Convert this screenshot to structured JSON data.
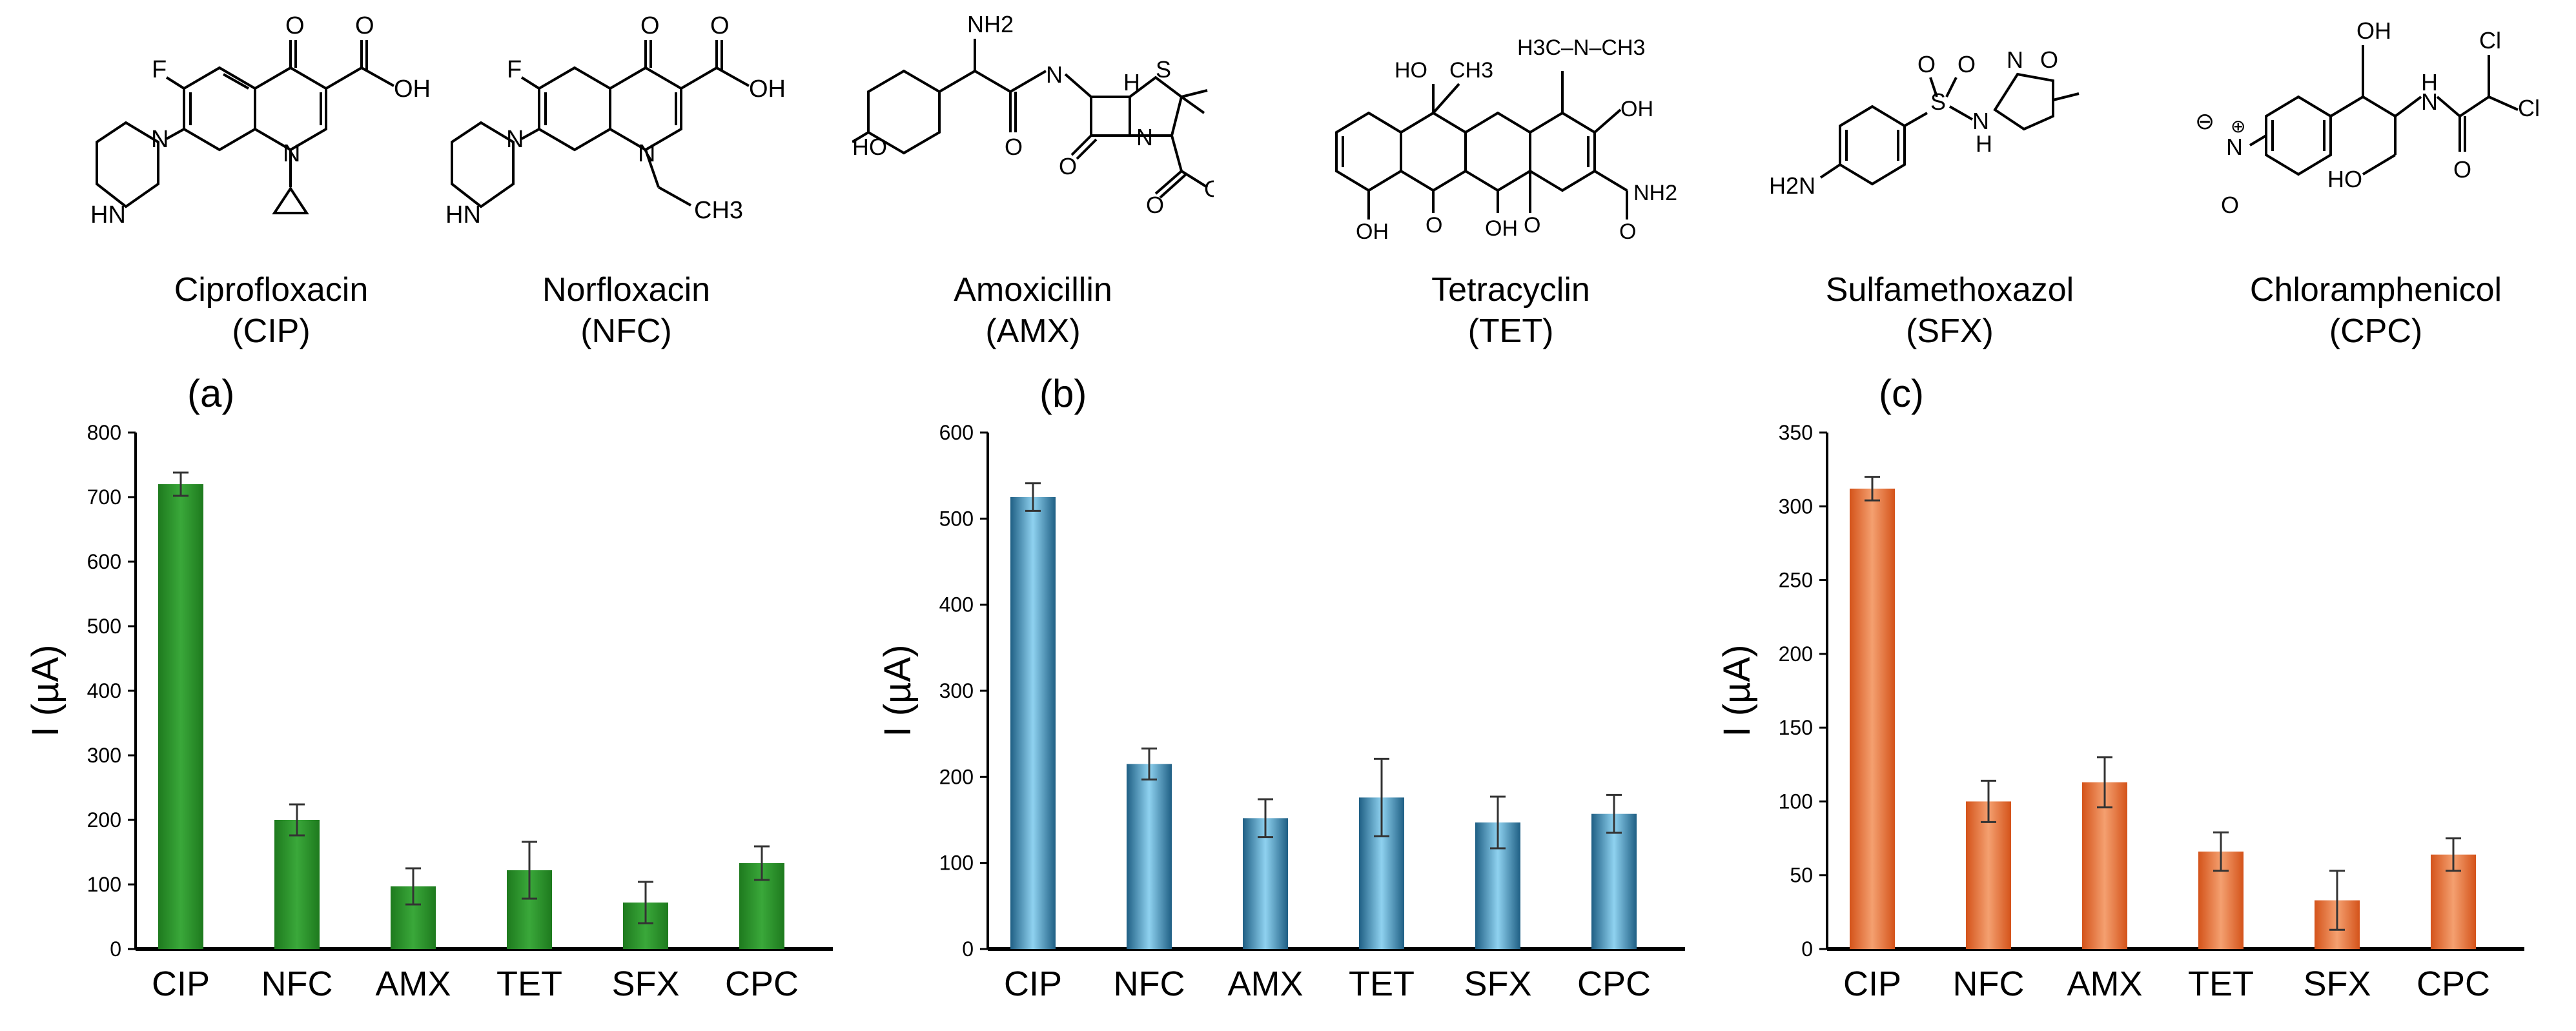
{
  "compounds": [
    {
      "name": "Ciprofloxacin",
      "abbr": "(CIP)",
      "structure_icon": "ciprofloxacin-structure"
    },
    {
      "name": "Norfloxacin",
      "abbr": "(NFC)",
      "structure_icon": "norfloxacin-structure"
    },
    {
      "name": "Amoxicillin",
      "abbr": "(AMX)",
      "structure_icon": "amoxicillin-structure"
    },
    {
      "name": "Tetracyclin",
      "abbr": "(TET)",
      "structure_icon": "tetracyclin-structure"
    },
    {
      "name": "Sulfamethoxazol",
      "abbr": "(SFX)",
      "structure_icon": "sulfamethoxazol-structure"
    },
    {
      "name": "Chloramphenicol",
      "abbr": "(CPC)",
      "structure_icon": "chloramphenicol-structure"
    }
  ],
  "structure_labels": {
    "cip": {
      "o": "O",
      "f": "F",
      "oh": "OH",
      "hn": "HN",
      "n": "N"
    },
    "nfc": {
      "o": "O",
      "f": "F",
      "oh": "OH",
      "hn": "HN",
      "n": "N",
      "ch3": "CH3"
    },
    "amx": {
      "nh2": "NH2",
      "ho": "HO",
      "nh": "N",
      "h": "H",
      "s": "S",
      "o": "O",
      "n": "N",
      "oh": "OH"
    },
    "tet": {
      "ho": "HO",
      "ch3": "CH3",
      "nme2": "H3C–N–CH3",
      "oh": "OH",
      "nh2": "NH2",
      "o": "O"
    },
    "sfx": {
      "o": "O",
      "s": "S",
      "n": "N",
      "h": "H",
      "h2n": "H2N"
    },
    "cpc": {
      "oh": "OH",
      "h": "H",
      "n": "N",
      "cl": "Cl",
      "o": "O",
      "ho": "HO",
      "minus": "⊖",
      "plus": "⊕"
    }
  },
  "chart_data": [
    {
      "type": "bar",
      "panel_label": "(a)",
      "categories": [
        "CIP",
        "NFC",
        "AMX",
        "TET",
        "SFX",
        "CPC"
      ],
      "values": [
        720,
        200,
        97,
        122,
        72,
        133
      ],
      "errors": [
        18,
        24,
        28,
        44,
        32,
        26
      ],
      "ylabel": "I (µA)",
      "xlabel": "",
      "ylim": [
        0,
        800
      ],
      "yticks": [
        0,
        100,
        200,
        300,
        400,
        500,
        600,
        700,
        800
      ],
      "bar_color": "#1e7a1e",
      "bar_highlight": "#3aa83a"
    },
    {
      "type": "bar",
      "panel_label": "(b)",
      "categories": [
        "CIP",
        "NFC",
        "AMX",
        "TET",
        "SFX",
        "CPC"
      ],
      "values": [
        525,
        215,
        152,
        176,
        147,
        157
      ],
      "errors": [
        16,
        18,
        22,
        45,
        30,
        22
      ],
      "ylabel": "I (µA)",
      "xlabel": "",
      "ylim": [
        0,
        600
      ],
      "yticks": [
        0,
        100,
        200,
        300,
        400,
        500,
        600
      ],
      "bar_color": "#1f5f84",
      "bar_highlight": "#8fd2f0"
    },
    {
      "type": "bar",
      "panel_label": "(c)",
      "categories": [
        "CIP",
        "NFC",
        "AMX",
        "TET",
        "SFX",
        "CPC"
      ],
      "values": [
        312,
        100,
        113,
        66,
        33,
        64
      ],
      "errors": [
        8,
        14,
        17,
        13,
        20,
        11
      ],
      "ylabel": "I (µA)",
      "xlabel": "",
      "ylim": [
        0,
        350
      ],
      "yticks": [
        0,
        50,
        100,
        150,
        200,
        250,
        300,
        350
      ],
      "bar_color": "#d4531a",
      "bar_highlight": "#f4a070"
    }
  ]
}
